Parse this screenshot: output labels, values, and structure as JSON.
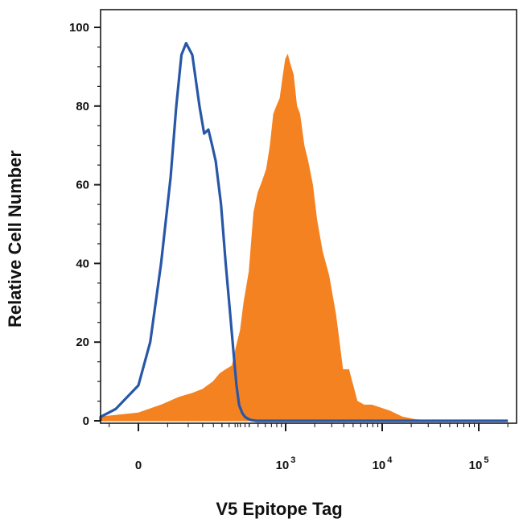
{
  "chart_data": {
    "type": "area",
    "xlabel": "V5 Epitope Tag",
    "ylabel": "Relative Cell Number",
    "x_scale": "biexponential",
    "xlim": [
      -500,
      200000
    ],
    "ylim": [
      0,
      100
    ],
    "y_ticks": [
      {
        "value": 0,
        "label": "0"
      },
      {
        "value": 20,
        "label": "20"
      },
      {
        "value": 40,
        "label": "40"
      },
      {
        "value": 60,
        "label": "60"
      },
      {
        "value": 80,
        "label": "80"
      },
      {
        "value": 100,
        "label": "100"
      }
    ],
    "x_ticks": [
      {
        "value": 0,
        "base": "0",
        "exp": ""
      },
      {
        "value": 1000,
        "base": "10",
        "exp": "3"
      },
      {
        "value": 10000,
        "base": "10",
        "exp": "4"
      },
      {
        "value": 100000,
        "base": "10",
        "exp": "5"
      }
    ],
    "grid": false,
    "legend": "none",
    "series": [
      {
        "color": "#f58220",
        "style": "filled",
        "x": [
          -500,
          -180,
          -60,
          0,
          30,
          60,
          90,
          120,
          160,
          190,
          220,
          260,
          290,
          320,
          350,
          400,
          450,
          500,
          560,
          620,
          680,
          740,
          800,
          870,
          930,
          1000,
          1050,
          1100,
          1200,
          1300,
          1400,
          1550,
          1700,
          1900,
          2100,
          2400,
          2800,
          3300,
          3900,
          4500,
          5500,
          6500,
          7800,
          9000,
          12000,
          16000,
          22000,
          30000,
          200000
        ],
        "y": [
          0,
          0.2,
          1.0,
          2.0,
          4.0,
          6.0,
          7.0,
          8.0,
          10.0,
          12.0,
          13.0,
          14.0,
          19.0,
          23.0,
          30.0,
          38.0,
          53.0,
          58.0,
          61.0,
          64.0,
          70.0,
          78.0,
          80.0,
          82.0,
          87.0,
          92.0,
          93.0,
          91.0,
          88.0,
          80.0,
          78.0,
          70.0,
          66.0,
          60.0,
          51.0,
          43.0,
          37.0,
          27.0,
          13.0,
          13.0,
          5.0,
          4.0,
          4.0,
          3.5,
          2.5,
          1.0,
          0.3,
          0.0,
          0.0
        ]
      },
      {
        "color": "#2757a6",
        "style": "line",
        "x": [
          -500,
          -150,
          -80,
          -30,
          0,
          15,
          30,
          45,
          55,
          65,
          75,
          90,
          110,
          125,
          140,
          155,
          170,
          195,
          220,
          245,
          270,
          290,
          310,
          335,
          360,
          390,
          420,
          480,
          600,
          200000
        ],
        "y": [
          0,
          0.3,
          1.0,
          3.0,
          9.0,
          20.0,
          40.0,
          62.0,
          80.0,
          93.0,
          96.0,
          93.0,
          80.0,
          73.0,
          74.0,
          70.0,
          66.0,
          55.0,
          40.0,
          28.0,
          17.0,
          9.0,
          4.0,
          2.0,
          1.0,
          0.5,
          0.2,
          0.0,
          0.0,
          0.0
        ]
      }
    ]
  }
}
